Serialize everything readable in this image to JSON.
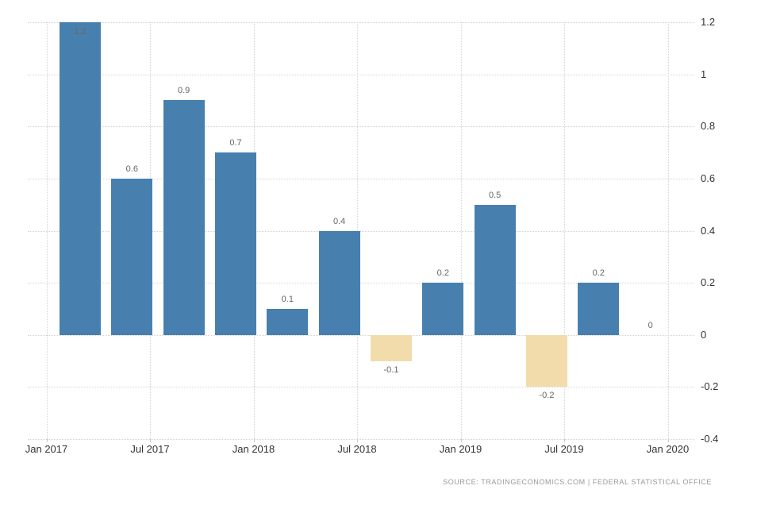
{
  "chart_data": {
    "type": "bar",
    "title": "",
    "categories": [
      "Q1 2017",
      "Q2 2017",
      "Q3 2017",
      "Q4 2017",
      "Q1 2018",
      "Q2 2018",
      "Q3 2018",
      "Q4 2018",
      "Q1 2019",
      "Q2 2019",
      "Q3 2019",
      "Q4 2019"
    ],
    "values": [
      1.2,
      0.6,
      0.9,
      0.7,
      0.1,
      0.4,
      -0.1,
      0.2,
      0.5,
      -0.2,
      0.2,
      0
    ],
    "bar_labels": [
      "1.2",
      "0.6",
      "0.9",
      "0.7",
      "0.1",
      "0.4",
      "-0.1",
      "0.2",
      "0.5",
      "-0.2",
      "0.2",
      "0"
    ],
    "x_tick_labels": [
      "Jan 2017",
      "Jul 2017",
      "Jan 2018",
      "Jul 2018",
      "Jan 2019",
      "Jul 2019",
      "Jan 2020"
    ],
    "y_ticks": [
      1.2,
      1,
      0.8,
      0.6,
      0.4,
      0.2,
      0,
      -0.2,
      -0.4
    ],
    "y_tick_labels": [
      "1.2",
      "1",
      "0.8",
      "0.6",
      "0.4",
      "0.2",
      "0",
      "-0.2",
      "-0.4"
    ],
    "ylim": [
      -0.4,
      1.2
    ],
    "xlabel": "",
    "ylabel": "",
    "grid": "dotted",
    "legend": "none",
    "positive_color": "#4780af",
    "negative_color": "#f2dcab",
    "value_label_color": "#666666",
    "axis_label_color": "#333333",
    "gridline_color": "#d4d4d4"
  },
  "source": {
    "text": "SOURCE:  TRADINGECONOMICS.COM  |  FEDERAL  STATISTICAL  OFFICE"
  }
}
